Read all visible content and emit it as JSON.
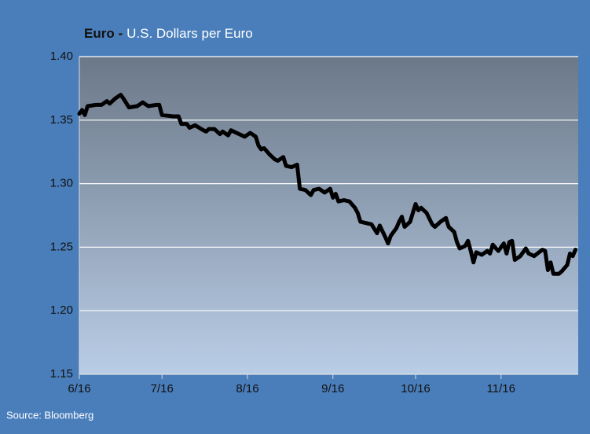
{
  "chart_data": {
    "type": "line",
    "title": "Euro -",
    "subtitle": "U.S. Dollars per Euro",
    "source": "Source: Bloomberg",
    "x": [
      0,
      1,
      2,
      3,
      6,
      8,
      10,
      11,
      13,
      15,
      16,
      18,
      21,
      23,
      25,
      28,
      29,
      30,
      34,
      36,
      37,
      39,
      40,
      42,
      45,
      46,
      47,
      49,
      51,
      52,
      54,
      55,
      58,
      60,
      62,
      64,
      65,
      66,
      67,
      69,
      71,
      72,
      74,
      75,
      77,
      79,
      80,
      82,
      84,
      85,
      87,
      89,
      91,
      92,
      93,
      94,
      96,
      98,
      100,
      101,
      102,
      104,
      106,
      108,
      109,
      111,
      112,
      113,
      115,
      116,
      117,
      118,
      120,
      121,
      122,
      123,
      124,
      126,
      128,
      129,
      131,
      133,
      134,
      136,
      137,
      138,
      140,
      141,
      142,
      143,
      144,
      146,
      148,
      149,
      150,
      152,
      154,
      155,
      156,
      157,
      158,
      160,
      162,
      163,
      165,
      168,
      169,
      170,
      171,
      172,
      174,
      175,
      177,
      178,
      179,
      180
    ],
    "series": [
      {
        "name": "Euro",
        "color": "#000000",
        "values": [
          1.355,
          1.358,
          1.354,
          1.361,
          1.362,
          1.362,
          1.365,
          1.363,
          1.367,
          1.37,
          1.367,
          1.36,
          1.361,
          1.364,
          1.361,
          1.362,
          1.362,
          1.354,
          1.353,
          1.353,
          1.347,
          1.347,
          1.344,
          1.346,
          1.342,
          1.341,
          1.343,
          1.343,
          1.339,
          1.341,
          1.338,
          1.342,
          1.339,
          1.337,
          1.34,
          1.337,
          1.33,
          1.327,
          1.328,
          1.323,
          1.319,
          1.318,
          1.321,
          1.314,
          1.313,
          1.315,
          1.296,
          1.295,
          1.291,
          1.295,
          1.296,
          1.293,
          1.296,
          1.289,
          1.292,
          1.286,
          1.287,
          1.286,
          1.281,
          1.277,
          1.27,
          1.269,
          1.268,
          1.261,
          1.267,
          1.258,
          1.253,
          1.259,
          1.265,
          1.27,
          1.274,
          1.266,
          1.27,
          1.277,
          1.284,
          1.279,
          1.281,
          1.277,
          1.268,
          1.266,
          1.27,
          1.273,
          1.266,
          1.262,
          1.254,
          1.249,
          1.251,
          1.255,
          1.247,
          1.238,
          1.246,
          1.244,
          1.247,
          1.245,
          1.252,
          1.247,
          1.253,
          1.245,
          1.254,
          1.255,
          1.24,
          1.243,
          1.249,
          1.245,
          1.243,
          1.248,
          1.247,
          1.232,
          1.238,
          1.229,
          1.229,
          1.231,
          1.236,
          1.245,
          1.243,
          1.248
        ]
      }
    ],
    "xlim": [
      0,
      181
    ],
    "xticks": [
      {
        "value": 0,
        "label": "6/16"
      },
      {
        "value": 30,
        "label": "7/16"
      },
      {
        "value": 61,
        "label": "8/16"
      },
      {
        "value": 92,
        "label": "9/16"
      },
      {
        "value": 122,
        "label": "10/16"
      },
      {
        "value": 153,
        "label": "11/16"
      }
    ],
    "ylim": [
      1.15,
      1.4
    ],
    "yticks": [
      {
        "value": 1.15,
        "label": "1.15"
      },
      {
        "value": 1.2,
        "label": "1.20"
      },
      {
        "value": 1.25,
        "label": "1.25"
      },
      {
        "value": 1.3,
        "label": "1.30"
      },
      {
        "value": 1.35,
        "label": "1.35"
      },
      {
        "value": 1.4,
        "label": "1.40"
      }
    ],
    "grid": true
  }
}
